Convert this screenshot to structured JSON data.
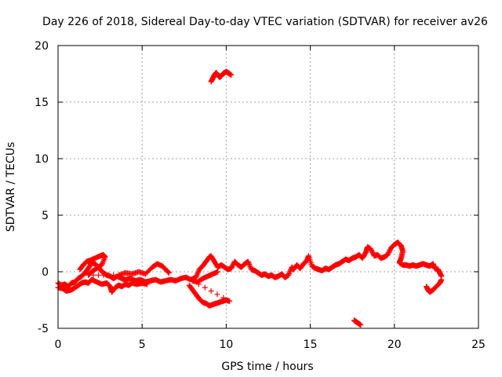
{
  "chart_data": {
    "type": "scatter",
    "title": "Day 226 of 2018, Sidereal Day-to-day VTEC variation (SDTVAR) for receiver av26",
    "xlabel": "GPS time / hours",
    "ylabel": "SDTVAR / TECUs",
    "xlim": [
      0,
      25
    ],
    "ylim": [
      -5,
      20
    ],
    "xticks": [
      0,
      5,
      10,
      15,
      20,
      25
    ],
    "yticks": [
      -5,
      0,
      5,
      10,
      15,
      20
    ],
    "xtick_labels": [
      "0",
      "5",
      "10",
      "15",
      "20",
      "25"
    ],
    "ytick_labels": [
      "-5",
      "0",
      "5",
      "10",
      "15",
      "20"
    ],
    "grid": true,
    "marker": "+",
    "color": "#ff0000",
    "series": [
      {
        "name": "main-trace",
        "points": [
          [
            0.0,
            -1.0
          ],
          [
            0.2,
            -1.2
          ],
          [
            0.4,
            -1.1
          ],
          [
            0.6,
            -1.3
          ],
          [
            0.8,
            -1.0
          ],
          [
            1.0,
            -0.9
          ],
          [
            1.2,
            -0.6
          ],
          [
            1.4,
            -0.4
          ],
          [
            1.6,
            -0.1
          ],
          [
            1.8,
            0.3
          ],
          [
            2.0,
            0.8
          ],
          [
            2.2,
            0.7
          ],
          [
            2.4,
            0.4
          ],
          [
            2.5,
            0.2
          ],
          [
            2.7,
            -0.1
          ],
          [
            2.9,
            -0.3
          ],
          [
            3.1,
            -0.4
          ],
          [
            3.3,
            -0.6
          ],
          [
            3.5,
            -0.4
          ],
          [
            3.8,
            -0.6
          ],
          [
            4.0,
            -0.7
          ],
          [
            4.3,
            -0.6
          ],
          [
            4.6,
            -0.8
          ],
          [
            4.9,
            -0.7
          ],
          [
            5.2,
            -0.9
          ],
          [
            5.5,
            -0.8
          ],
          [
            5.8,
            -0.7
          ],
          [
            6.1,
            -0.9
          ],
          [
            6.4,
            -0.8
          ],
          [
            6.7,
            -0.7
          ],
          [
            7.0,
            -0.8
          ],
          [
            7.3,
            -0.6
          ],
          [
            7.6,
            -0.5
          ],
          [
            7.9,
            -0.7
          ],
          [
            8.2,
            -0.5
          ],
          [
            8.4,
            0.2
          ],
          [
            8.6,
            0.5
          ],
          [
            8.8,
            0.9
          ],
          [
            9.0,
            1.3
          ],
          [
            9.1,
            1.4
          ],
          [
            9.3,
            0.9
          ],
          [
            9.5,
            0.4
          ],
          [
            9.7,
            0.6
          ],
          [
            9.9,
            0.4
          ],
          [
            10.1,
            0.2
          ],
          [
            10.3,
            0.3
          ],
          [
            10.5,
            0.9
          ],
          [
            10.7,
            0.6
          ],
          [
            10.9,
            0.4
          ],
          [
            11.1,
            0.7
          ],
          [
            11.3,
            0.9
          ],
          [
            11.5,
            0.2
          ],
          [
            11.7,
            0.1
          ],
          [
            11.9,
            -0.1
          ],
          [
            12.1,
            -0.3
          ],
          [
            12.3,
            -0.2
          ],
          [
            12.5,
            -0.4
          ],
          [
            12.7,
            -0.3
          ],
          [
            12.9,
            -0.5
          ],
          [
            13.1,
            -0.4
          ],
          [
            13.3,
            -0.2
          ],
          [
            13.5,
            -0.5
          ],
          [
            13.7,
            -0.3
          ],
          [
            13.9,
            0.4
          ],
          [
            14.0,
            0.2
          ],
          [
            14.2,
            0.6
          ],
          [
            14.4,
            0.3
          ],
          [
            14.6,
            0.7
          ],
          [
            14.8,
            1.0
          ],
          [
            14.9,
            1.4
          ],
          [
            15.1,
            0.5
          ],
          [
            15.3,
            0.3
          ],
          [
            15.5,
            0.2
          ],
          [
            15.7,
            0.1
          ],
          [
            15.9,
            0.3
          ],
          [
            16.1,
            0.2
          ],
          [
            16.3,
            0.4
          ],
          [
            16.5,
            0.6
          ],
          [
            16.7,
            0.7
          ],
          [
            16.9,
            0.9
          ],
          [
            17.1,
            1.1
          ],
          [
            17.3,
            1.0
          ],
          [
            17.5,
            1.2
          ],
          [
            17.7,
            1.3
          ],
          [
            17.9,
            1.5
          ],
          [
            18.1,
            1.2
          ],
          [
            18.3,
            1.7
          ],
          [
            18.4,
            2.2
          ],
          [
            18.6,
            2.0
          ],
          [
            18.8,
            1.4
          ],
          [
            19.0,
            1.5
          ],
          [
            19.2,
            1.2
          ],
          [
            19.4,
            1.3
          ],
          [
            19.6,
            1.5
          ],
          [
            19.8,
            2.1
          ],
          [
            20.0,
            2.4
          ],
          [
            20.2,
            2.6
          ],
          [
            20.4,
            2.3
          ],
          [
            20.5,
            1.8
          ],
          [
            20.4,
            1.2
          ],
          [
            20.3,
            0.8
          ],
          [
            20.5,
            0.6
          ],
          [
            20.7,
            0.6
          ],
          [
            20.9,
            0.5
          ],
          [
            21.1,
            0.6
          ],
          [
            21.3,
            0.5
          ],
          [
            21.5,
            0.6
          ],
          [
            21.7,
            0.7
          ],
          [
            21.9,
            0.6
          ],
          [
            22.1,
            0.5
          ],
          [
            22.3,
            0.7
          ],
          [
            22.4,
            0.3
          ],
          [
            22.6,
            0.2
          ],
          [
            22.7,
            -0.1
          ],
          [
            22.8,
            -0.4
          ]
        ]
      },
      {
        "name": "early-lower-band",
        "points": [
          [
            0.0,
            -1.4
          ],
          [
            0.3,
            -1.5
          ],
          [
            0.5,
            -1.7
          ],
          [
            0.8,
            -1.6
          ],
          [
            1.0,
            -1.4
          ],
          [
            1.2,
            -1.2
          ],
          [
            1.4,
            -1.0
          ],
          [
            1.6,
            -0.9
          ],
          [
            1.8,
            -1.0
          ],
          [
            2.0,
            -0.7
          ],
          [
            2.3,
            -0.9
          ],
          [
            2.6,
            -1.1
          ],
          [
            2.9,
            -1.0
          ],
          [
            3.1,
            -1.3
          ],
          [
            3.2,
            -1.8
          ],
          [
            3.4,
            -1.4
          ],
          [
            3.6,
            -1.2
          ],
          [
            3.8,
            -1.3
          ],
          [
            4.0,
            -1.1
          ],
          [
            4.2,
            -1.2
          ],
          [
            4.4,
            -1.0
          ],
          [
            4.7,
            -1.1
          ],
          [
            5.0,
            -1.0
          ],
          [
            5.3,
            -1.1
          ]
        ]
      },
      {
        "name": "early-upper-branch",
        "points": [
          [
            1.3,
            0.2
          ],
          [
            1.5,
            0.6
          ],
          [
            1.7,
            0.9
          ],
          [
            1.9,
            1.0
          ],
          [
            2.2,
            1.2
          ],
          [
            2.5,
            1.4
          ],
          [
            2.7,
            1.5
          ],
          [
            2.8,
            1.3
          ],
          [
            2.6,
            0.6
          ],
          [
            2.3,
            0.3
          ],
          [
            2.0,
            0.0
          ],
          [
            1.8,
            -0.3
          ],
          [
            3.6,
            -0.3
          ],
          [
            4.0,
            -0.1
          ],
          [
            4.4,
            -0.2
          ],
          [
            4.8,
            0.0
          ],
          [
            5.2,
            -0.2
          ],
          [
            5.6,
            0.4
          ],
          [
            5.9,
            0.7
          ],
          [
            6.2,
            0.5
          ],
          [
            6.4,
            0.2
          ],
          [
            6.6,
            -0.1
          ]
        ]
      },
      {
        "name": "mid-lower-loop",
        "points": [
          [
            7.8,
            -1.2
          ],
          [
            8.0,
            -1.6
          ],
          [
            8.2,
            -2.0
          ],
          [
            8.4,
            -2.4
          ],
          [
            8.6,
            -2.7
          ],
          [
            8.8,
            -2.8
          ],
          [
            9.0,
            -3.0
          ],
          [
            9.2,
            -2.9
          ],
          [
            9.4,
            -2.8
          ],
          [
            9.6,
            -2.7
          ],
          [
            9.8,
            -2.6
          ],
          [
            10.0,
            -2.5
          ],
          [
            10.2,
            -2.6
          ],
          [
            8.0,
            -0.8
          ],
          [
            8.3,
            -0.9
          ],
          [
            8.6,
            -0.6
          ],
          [
            8.9,
            -0.4
          ],
          [
            9.2,
            -0.2
          ],
          [
            9.5,
            0.0
          ]
        ]
      },
      {
        "name": "upper-excursion",
        "points": [
          [
            9.1,
            16.8
          ],
          [
            9.2,
            17.1
          ],
          [
            9.3,
            17.4
          ],
          [
            9.4,
            17.6
          ],
          [
            9.5,
            17.4
          ],
          [
            9.6,
            17.2
          ],
          [
            9.7,
            17.3
          ],
          [
            9.8,
            17.5
          ],
          [
            9.9,
            17.6
          ],
          [
            10.0,
            17.7
          ],
          [
            10.1,
            17.6
          ],
          [
            10.2,
            17.5
          ],
          [
            10.3,
            17.4
          ]
        ]
      },
      {
        "name": "late-lower-segment",
        "points": [
          [
            17.6,
            -4.3
          ],
          [
            17.7,
            -4.4
          ],
          [
            17.8,
            -4.5
          ],
          [
            17.9,
            -4.6
          ],
          [
            18.0,
            -4.7
          ]
        ]
      },
      {
        "name": "end-lower-branch",
        "points": [
          [
            21.9,
            -1.3
          ],
          [
            22.0,
            -1.6
          ],
          [
            22.1,
            -1.8
          ],
          [
            22.3,
            -1.6
          ],
          [
            22.5,
            -1.3
          ],
          [
            22.7,
            -1.0
          ],
          [
            22.8,
            -0.7
          ]
        ]
      }
    ]
  }
}
